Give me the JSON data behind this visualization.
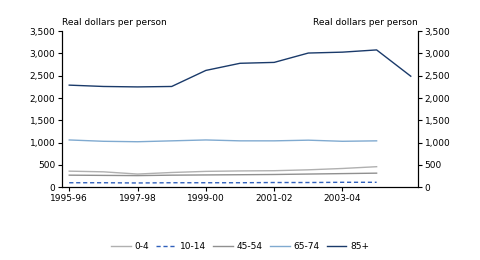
{
  "series": {
    "0-4": [
      360,
      345,
      295,
      330,
      355,
      365,
      370,
      390,
      420,
      460
    ],
    "10-14": [
      100,
      100,
      95,
      100,
      100,
      100,
      105,
      105,
      110,
      110
    ],
    "45-54": [
      270,
      265,
      260,
      270,
      275,
      280,
      285,
      295,
      305,
      315
    ],
    "65-74": [
      1060,
      1030,
      1020,
      1040,
      1060,
      1040,
      1040,
      1055,
      1030,
      1040
    ],
    "85+": [
      2290,
      2260,
      2250,
      2260,
      2620,
      2780,
      2800,
      3010,
      3030,
      3080,
      2490
    ]
  },
  "x_others": [
    0,
    1,
    2,
    3,
    4,
    5,
    6,
    7,
    8,
    9
  ],
  "x_85": [
    0,
    1,
    2,
    3,
    4,
    5,
    6,
    7,
    8,
    9,
    10
  ],
  "colors": {
    "0-4": "#b0b0b0",
    "10-14": "#3060bb",
    "45-54": "#909090",
    "65-74": "#80aad0",
    "85+": "#1a3a6a"
  },
  "ylim": [
    0,
    3500
  ],
  "yticks": [
    0,
    500,
    1000,
    1500,
    2000,
    2500,
    3000,
    3500
  ],
  "xtick_labels": [
    "1995-96",
    "1997-98",
    "1999-00",
    "2001-02",
    "2003-04"
  ],
  "xtick_positions": [
    0,
    2,
    4,
    6,
    8
  ],
  "ylabel_left": "Real dollars per person",
  "ylabel_right": "Real dollars per person",
  "background_color": "#ffffff"
}
